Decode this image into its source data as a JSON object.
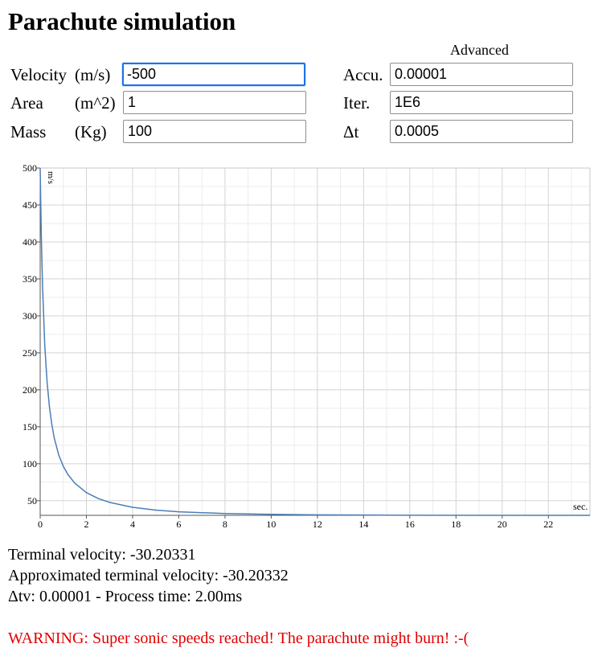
{
  "page": {
    "title": "Parachute simulation"
  },
  "form": {
    "velocity": {
      "name": "Velocity",
      "unit": "(m/s)",
      "value": "-500"
    },
    "area": {
      "name": "Area",
      "unit": "(m^2)",
      "value": "1"
    },
    "mass": {
      "name": "Mass",
      "unit": "(Kg)",
      "value": "100"
    }
  },
  "advanced": {
    "heading": "Advanced",
    "accuracy": {
      "label": "Accu.",
      "value": "0.00001"
    },
    "iterations": {
      "label": "Iter.",
      "value": "1E6"
    },
    "dt": {
      "label": "Δt",
      "value": "0.0005"
    }
  },
  "chart_data": {
    "type": "line",
    "ylabel": "m/s",
    "xlabel": "sec.",
    "xlim": [
      0,
      23.8
    ],
    "ylim": [
      30.2,
      500
    ],
    "x_ticks": [
      0,
      2,
      4,
      6,
      8,
      10,
      12,
      14,
      16,
      18,
      20,
      22
    ],
    "y_ticks": [
      50,
      100,
      150,
      200,
      250,
      300,
      350,
      400,
      450,
      500
    ],
    "grid": true,
    "line_color": "#4a7fb5",
    "series": [
      {
        "x": [
          0,
          0.05,
          0.1,
          0.2,
          0.3,
          0.4,
          0.5,
          0.6,
          0.8,
          1.0,
          1.2,
          1.5,
          2.0,
          2.5,
          3.0,
          4.0,
          5.0,
          6.0,
          8.0,
          10.0,
          12.0,
          16.0,
          20.0,
          23.8
        ],
        "y": [
          500,
          406,
          342,
          259,
          210,
          177,
          154,
          136,
          112,
          96.5,
          85.5,
          73.6,
          61.0,
          53.1,
          47.7,
          41.1,
          37.3,
          35.0,
          32.6,
          31.5,
          30.9,
          30.4,
          30.25,
          30.21
        ]
      }
    ]
  },
  "results": {
    "terminal_velocity": "Terminal velocity: -30.20331",
    "approx_terminal_velocity": "Approximated terminal velocity: -30.20332",
    "delta_tv": "Δtv: 0.00001 - Process time: 2.00ms"
  },
  "warning": {
    "text": "WARNING: Super sonic speeds reached! The parachute might burn! :-(",
    "color": "#e00000"
  }
}
